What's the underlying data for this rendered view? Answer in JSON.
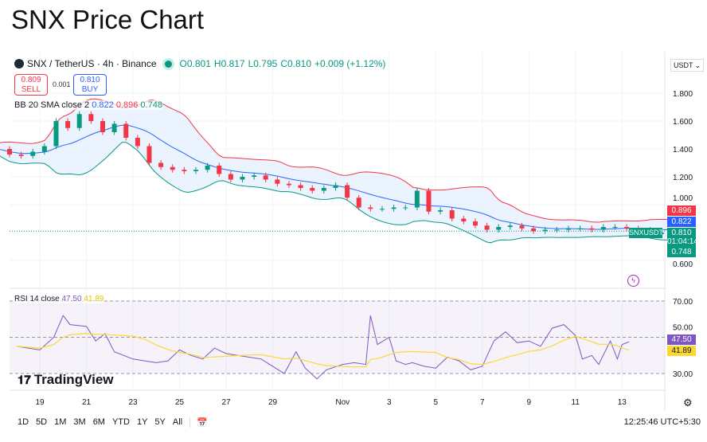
{
  "title": "SNX Price Chart",
  "legend": {
    "symbol": "SNX / TetherUS · 4h · Binance",
    "open": "O0.801",
    "high": "H0.817",
    "low": "L0.795",
    "close": "C0.810",
    "change": "+0.009 (+1.12%)"
  },
  "trade": {
    "sell_price": "0.809",
    "sell_label": "SELL",
    "spread": "0.001",
    "buy_price": "0.810",
    "buy_label": "BUY"
  },
  "bb": {
    "label": "BB 20 SMA close 2",
    "basis": "0.822",
    "upper": "0.896",
    "lower": "0.748"
  },
  "rsi": {
    "label": "RSI 14 close",
    "value": "47.50",
    "ma": "41.89"
  },
  "currency": "USDT",
  "price_tags": {
    "upper": "0.896",
    "basis": "0.822",
    "last": "0.810",
    "countdown": "01:04:14",
    "lower": "0.748",
    "symbol": "SNXUSDT"
  },
  "colors": {
    "up": "#089981",
    "down": "#f23645",
    "basis": "#2962ff",
    "rsi": "#7e57c2",
    "rsi_ma": "#fdd835",
    "band_fill": "#e3f0fd"
  },
  "toolbar": {
    "ranges": [
      "1D",
      "5D",
      "1M",
      "3M",
      "6M",
      "YTD",
      "1Y",
      "5Y",
      "All"
    ],
    "time": "12:25:46 UTC+5:30"
  },
  "branding": "TradingView",
  "chart_data": {
    "type": "candlestick",
    "title": "SNX / TetherUS · 4h · Binance",
    "price_axis": {
      "ticks": [
        "1.800",
        "1.600",
        "1.400",
        "1.200",
        "1.000",
        "0.600"
      ],
      "range": [
        0.56,
        1.86
      ]
    },
    "time_axis": {
      "ticks": [
        {
          "d": 1,
          "label": "19"
        },
        {
          "d": 3,
          "label": "21"
        },
        {
          "d": 5,
          "label": "23"
        },
        {
          "d": 7,
          "label": "25"
        },
        {
          "d": 9,
          "label": "27"
        },
        {
          "d": 11,
          "label": "29"
        },
        {
          "d": 14,
          "label": "Nov"
        },
        {
          "d": 16,
          "label": "3"
        },
        {
          "d": 18,
          "label": "5"
        },
        {
          "d": 20,
          "label": "7"
        },
        {
          "d": 22,
          "label": "9"
        },
        {
          "d": 24,
          "label": "11"
        },
        {
          "d": 26,
          "label": "13"
        }
      ]
    },
    "closes_12h": [
      1.4,
      1.36,
      1.35,
      1.38,
      1.42,
      1.6,
      1.55,
      1.65,
      1.6,
      1.52,
      1.58,
      1.48,
      1.42,
      1.3,
      1.27,
      1.25,
      1.24,
      1.25,
      1.28,
      1.22,
      1.18,
      1.2,
      1.21,
      1.18,
      1.15,
      1.14,
      1.12,
      1.1,
      1.12,
      1.14,
      1.05,
      0.98,
      0.97,
      0.97,
      0.98,
      0.98,
      1.1,
      0.95,
      0.96,
      0.9,
      0.88,
      0.85,
      0.82,
      0.84,
      0.85,
      0.83,
      0.81,
      0.82,
      0.82,
      0.83,
      0.83,
      0.82,
      0.84,
      0.84,
      0.83,
      0.82,
      0.79,
      0.8,
      0.81
    ],
    "rsi": {
      "ylim": [
        30,
        70
      ],
      "ticks": [
        "70.00",
        "50.00",
        "30.00"
      ],
      "points": [
        [
          0,
          45
        ],
        [
          1,
          43
        ],
        [
          1.6,
          50
        ],
        [
          2,
          62
        ],
        [
          2.3,
          57
        ],
        [
          3,
          56
        ],
        [
          3.4,
          48
        ],
        [
          3.8,
          52
        ],
        [
          4.2,
          42
        ],
        [
          5,
          38
        ],
        [
          5.5,
          37
        ],
        [
          6,
          36
        ],
        [
          6.5,
          37
        ],
        [
          7,
          43
        ],
        [
          7.5,
          40
        ],
        [
          8,
          38
        ],
        [
          8.5,
          44
        ],
        [
          9,
          41
        ],
        [
          9.5,
          40
        ],
        [
          10,
          39
        ],
        [
          10.5,
          38
        ],
        [
          11,
          34
        ],
        [
          11.5,
          30
        ],
        [
          12,
          42
        ],
        [
          12.4,
          33
        ],
        [
          12.9,
          27
        ],
        [
          13.3,
          32
        ],
        [
          14,
          35
        ],
        [
          14.5,
          36
        ],
        [
          15,
          35
        ],
        [
          15.2,
          62
        ],
        [
          15.5,
          46
        ],
        [
          16,
          50
        ],
        [
          16.3,
          37
        ],
        [
          16.7,
          35
        ],
        [
          17,
          36
        ],
        [
          17.5,
          34
        ],
        [
          18,
          33
        ],
        [
          18.5,
          39
        ],
        [
          19,
          37
        ],
        [
          19.5,
          32
        ],
        [
          20,
          34
        ],
        [
          20.5,
          48
        ],
        [
          21,
          53
        ],
        [
          21.5,
          47
        ],
        [
          22,
          48
        ],
        [
          22.5,
          45
        ],
        [
          23,
          55
        ],
        [
          23.5,
          57
        ],
        [
          24,
          51
        ],
        [
          24.3,
          38
        ],
        [
          24.7,
          40
        ],
        [
          25,
          35
        ],
        [
          25.5,
          48
        ],
        [
          25.8,
          38
        ],
        [
          26,
          46
        ],
        [
          26.3,
          47.5
        ]
      ]
    }
  }
}
